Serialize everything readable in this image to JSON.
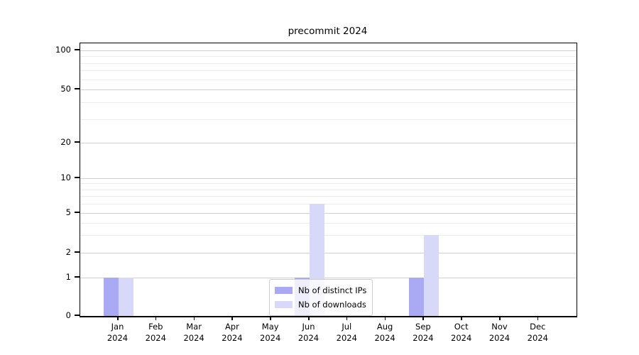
{
  "chart_data": {
    "type": "bar",
    "title": "precommit 2024",
    "categories": [
      {
        "month": "Jan",
        "year": "2024"
      },
      {
        "month": "Feb",
        "year": "2024"
      },
      {
        "month": "Mar",
        "year": "2024"
      },
      {
        "month": "Apr",
        "year": "2024"
      },
      {
        "month": "May",
        "year": "2024"
      },
      {
        "month": "Jun",
        "year": "2024"
      },
      {
        "month": "Jul",
        "year": "2024"
      },
      {
        "month": "Aug",
        "year": "2024"
      },
      {
        "month": "Sep",
        "year": "2024"
      },
      {
        "month": "Oct",
        "year": "2024"
      },
      {
        "month": "Nov",
        "year": "2024"
      },
      {
        "month": "Dec",
        "year": "2024"
      }
    ],
    "series": [
      {
        "name": "Nb of distinct IPs",
        "color": "#a9a9f4",
        "values": [
          1,
          0,
          0,
          0,
          0,
          1,
          0,
          0,
          1,
          0,
          0,
          0
        ]
      },
      {
        "name": "Nb of downloads",
        "color": "#d8d8f8",
        "values": [
          1,
          0,
          0,
          0,
          0,
          6,
          0,
          0,
          3,
          0,
          0,
          0
        ]
      }
    ],
    "xlabel": "",
    "ylabel": "",
    "yaxis": {
      "scale": "log-with-zero",
      "ticks": [
        0,
        1,
        2,
        5,
        10,
        20,
        50,
        100
      ],
      "minor_ticks": [
        3,
        4,
        6,
        7,
        8,
        9,
        30,
        40,
        60,
        70,
        80,
        90
      ],
      "ylim": [
        0,
        113
      ]
    },
    "grid": true,
    "legend_position": "lower center"
  },
  "colors": {
    "major_grid": "#cfcfcf",
    "minor_grid": "#ececec",
    "axis": "#000000",
    "legend_border": "#cccccc",
    "background": "#ffffff"
  }
}
